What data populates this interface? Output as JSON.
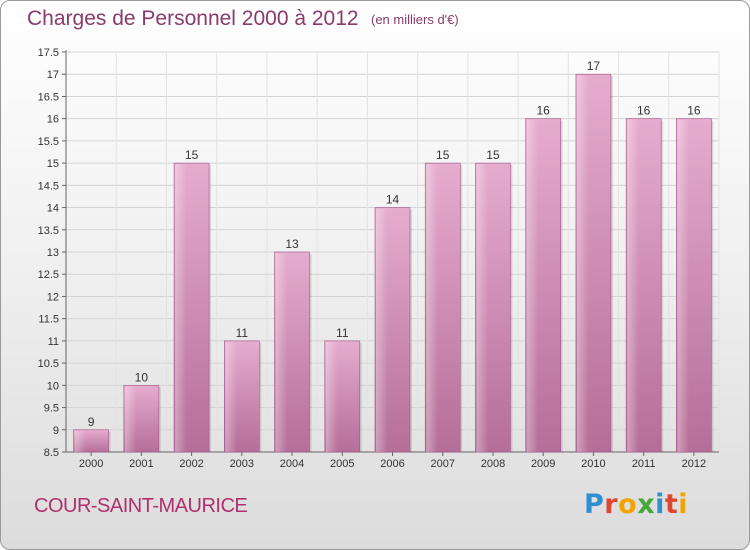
{
  "header": {
    "title": "Charges de Personnel 2000 à 2012",
    "subtitle": "(en milliers d'€)"
  },
  "footer": {
    "commune": "COUR-SAINT-MAURICE",
    "logo": [
      "P",
      "r",
      "o",
      "x",
      "i",
      "t",
      "i"
    ],
    "logo_colors": [
      "#2f8fd0",
      "#e0452e",
      "#f0a400",
      "#44a83a",
      "#2f8fd0",
      "#e0452e",
      "#f0a400"
    ]
  },
  "chart_data": {
    "type": "bar",
    "title": "Charges de Personnel 2000 à 2012",
    "subtitle": "(en milliers d'€)",
    "categories": [
      "2000",
      "2001",
      "2002",
      "2003",
      "2004",
      "2005",
      "2006",
      "2007",
      "2008",
      "2009",
      "2010",
      "2011",
      "2012"
    ],
    "values": [
      9,
      10,
      15,
      11,
      13,
      11,
      14,
      15,
      15,
      16,
      17,
      16,
      16
    ],
    "ylim": [
      8.5,
      17.5
    ],
    "yticks": [
      "8.5",
      "9",
      "9.5",
      "10",
      "10.5",
      "11",
      "11.5",
      "12",
      "12.5",
      "13",
      "13.5",
      "14",
      "14.5",
      "15",
      "15.5",
      "16",
      "16.5",
      "17",
      "17.5"
    ],
    "xlabel": "",
    "ylabel": "",
    "grid": true,
    "bar_color": "#c06a9e",
    "bar_color_light": "#e3a8cc"
  }
}
